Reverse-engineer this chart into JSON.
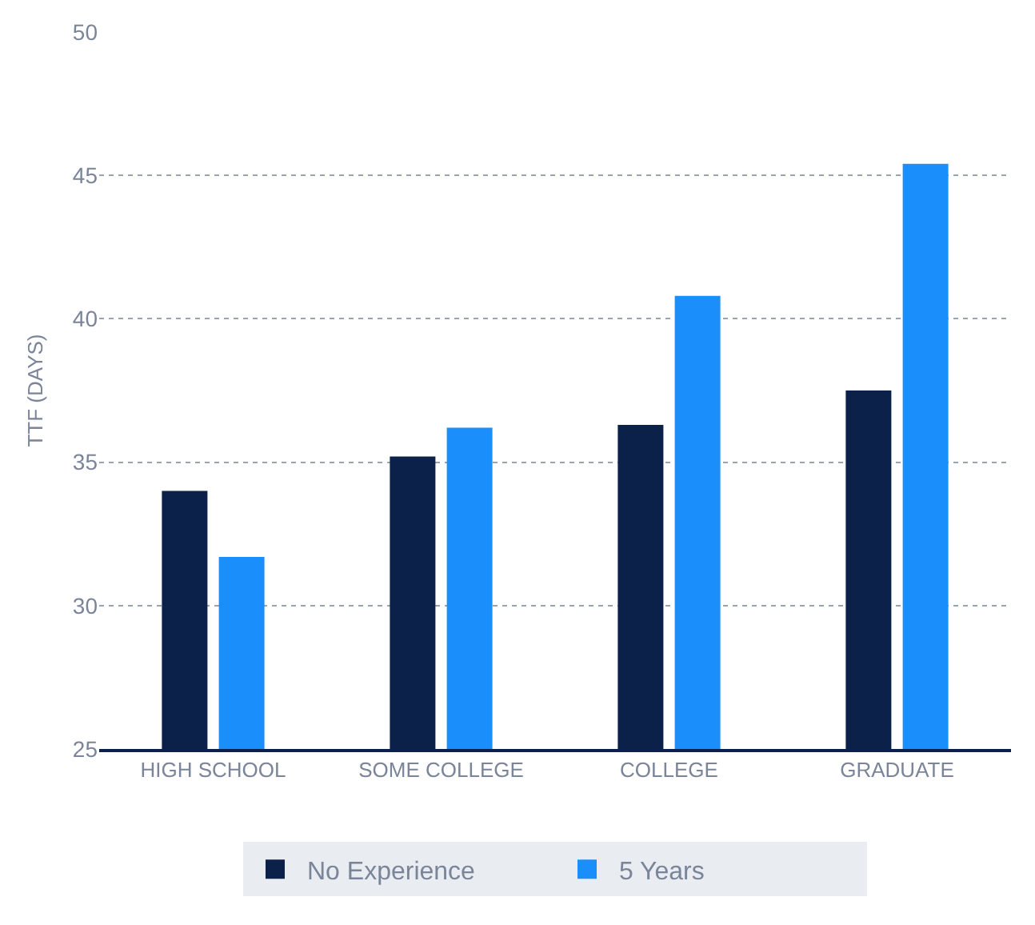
{
  "chart_data": {
    "type": "bar",
    "ylabel": "TTF (DAYS)",
    "categories": [
      "HIGH SCHOOL",
      "SOME COLLEGE",
      "COLLEGE",
      "GRADUATE"
    ],
    "series": [
      {
        "name": "No Experience",
        "color": "#0b2149",
        "values": [
          34.0,
          35.2,
          36.3,
          37.5
        ]
      },
      {
        "name": "5 Years",
        "color": "#1a8ffb",
        "values": [
          31.7,
          36.2,
          40.8,
          45.4
        ]
      }
    ],
    "ylim": [
      25,
      50
    ],
    "yticks": [
      25,
      30,
      35,
      40,
      45,
      50
    ],
    "grid": "y",
    "legend": "bottom"
  }
}
